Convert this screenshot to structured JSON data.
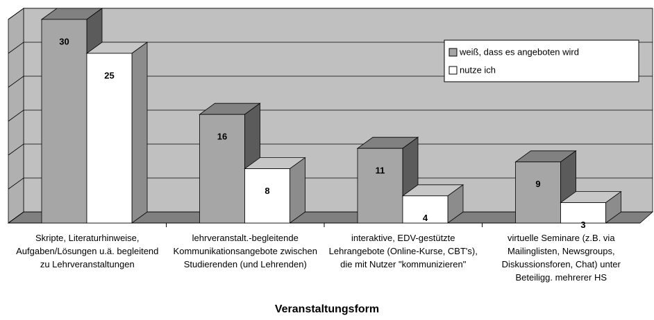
{
  "chart_data": {
    "type": "bar",
    "categories": [
      "Skripte, Literaturhinweise, Aufgaben/Lösungen u.ä. begleitend zu Lehrveranstaltungen",
      "lehrveranstalt.-begleitende Kommunikationsangebote zwischen Studierenden (und Lehrenden)",
      "interaktive, EDV-gestützte Lehrangebote (Online-Kurse, CBT's), die mit Nutzer \"kommunizieren\"",
      "virtuelle Seminare (z.B. via Mailinglisten, Newsgroups, Diskussionsforen, Chat) unter Beteiligg. mehrerer HS"
    ],
    "series": [
      {
        "name": "weiß, dass es angeboten wird",
        "color": "#a6a6a6",
        "values": [
          30,
          16,
          11,
          9
        ]
      },
      {
        "name": "nutze ich",
        "color": "#ffffff",
        "values": [
          25,
          8,
          4,
          3
        ]
      }
    ],
    "xlabel": "Veranstaltungsform",
    "ylim": [
      0,
      30
    ],
    "yticks": [
      0,
      5,
      10,
      15,
      20,
      25,
      30
    ],
    "grid": true
  }
}
